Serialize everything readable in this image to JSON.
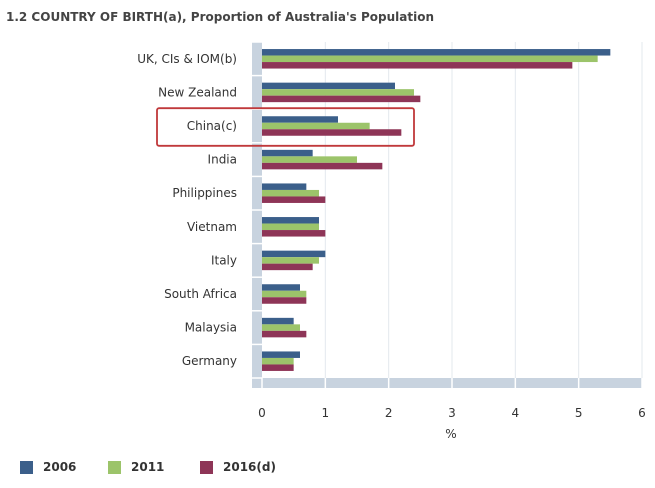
{
  "chart_data": {
    "type": "bar",
    "orientation": "horizontal",
    "title": "1.2 COUNTRY OF BIRTH(a), Proportion of Australia's Population",
    "xlabel": "%",
    "ylabel": "",
    "xlim": [
      0,
      6
    ],
    "xticks": [
      0,
      1,
      2,
      3,
      4,
      5,
      6
    ],
    "grid": true,
    "legend_position": "bottom",
    "categories": [
      "UK, CIs & IOM(b)",
      "New Zealand",
      "China(c)",
      "India",
      "Philippines",
      "Vietnam",
      "Italy",
      "South Africa",
      "Malaysia",
      "Germany"
    ],
    "series": [
      {
        "name": "2006",
        "color": "#3b5f8a",
        "values": [
          5.5,
          2.1,
          1.2,
          0.8,
          0.7,
          0.9,
          1.0,
          0.6,
          0.5,
          0.6
        ]
      },
      {
        "name": "2011",
        "color": "#9cc46a",
        "values": [
          5.3,
          2.4,
          1.7,
          1.5,
          0.9,
          0.9,
          0.9,
          0.7,
          0.6,
          0.5
        ]
      },
      {
        "name": "2016(d)",
        "color": "#8e3557",
        "values": [
          4.9,
          2.5,
          2.2,
          1.9,
          1.0,
          1.0,
          0.8,
          0.7,
          0.7,
          0.5
        ]
      }
    ],
    "highlight": {
      "category": "China(c)",
      "color": "#c0393b"
    }
  }
}
